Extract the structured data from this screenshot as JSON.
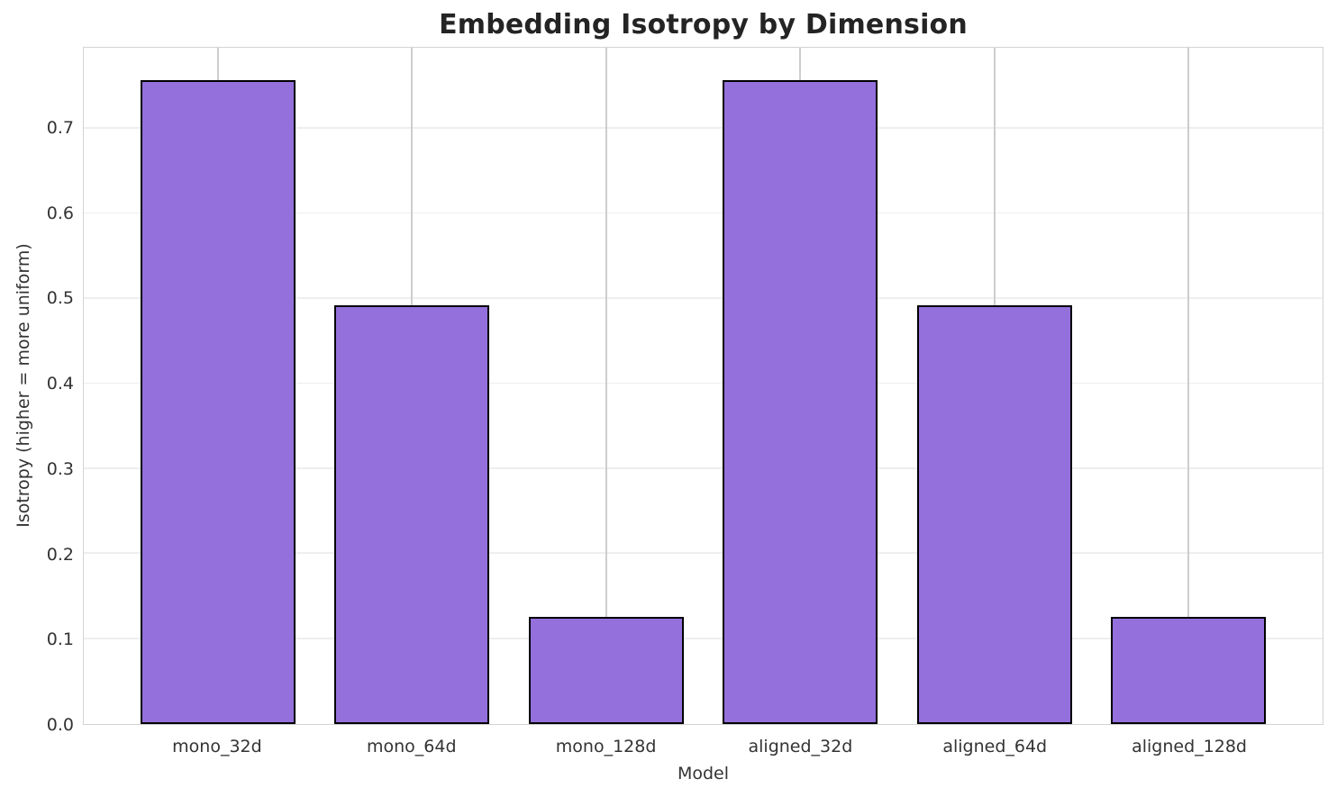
{
  "chart_data": {
    "type": "bar",
    "title": "Embedding Isotropy by Dimension",
    "xlabel": "Model",
    "ylabel": "Isotropy (higher = more uniform)",
    "categories": [
      "mono_32d",
      "mono_64d",
      "mono_128d",
      "aligned_32d",
      "aligned_64d",
      "aligned_128d"
    ],
    "values": [
      0.757,
      0.492,
      0.126,
      0.757,
      0.492,
      0.126
    ],
    "ylim": [
      0,
      0.795
    ],
    "yticks": [
      0.0,
      0.1,
      0.2,
      0.3,
      0.4,
      0.5,
      0.6,
      0.7
    ],
    "ytick_labels": [
      "0.0",
      "0.1",
      "0.2",
      "0.3",
      "0.4",
      "0.5",
      "0.6",
      "0.7"
    ],
    "x_range": [
      -0.69,
      5.69
    ],
    "bar_width_units": 0.8,
    "bar_color": "#9370DB",
    "bar_edge_color": "#000000",
    "grid": true,
    "grid_color_horizontal": "#eeeeee",
    "grid_color_vertical": "#cdcdcd",
    "legend": false,
    "background_color": "#ffffff"
  }
}
